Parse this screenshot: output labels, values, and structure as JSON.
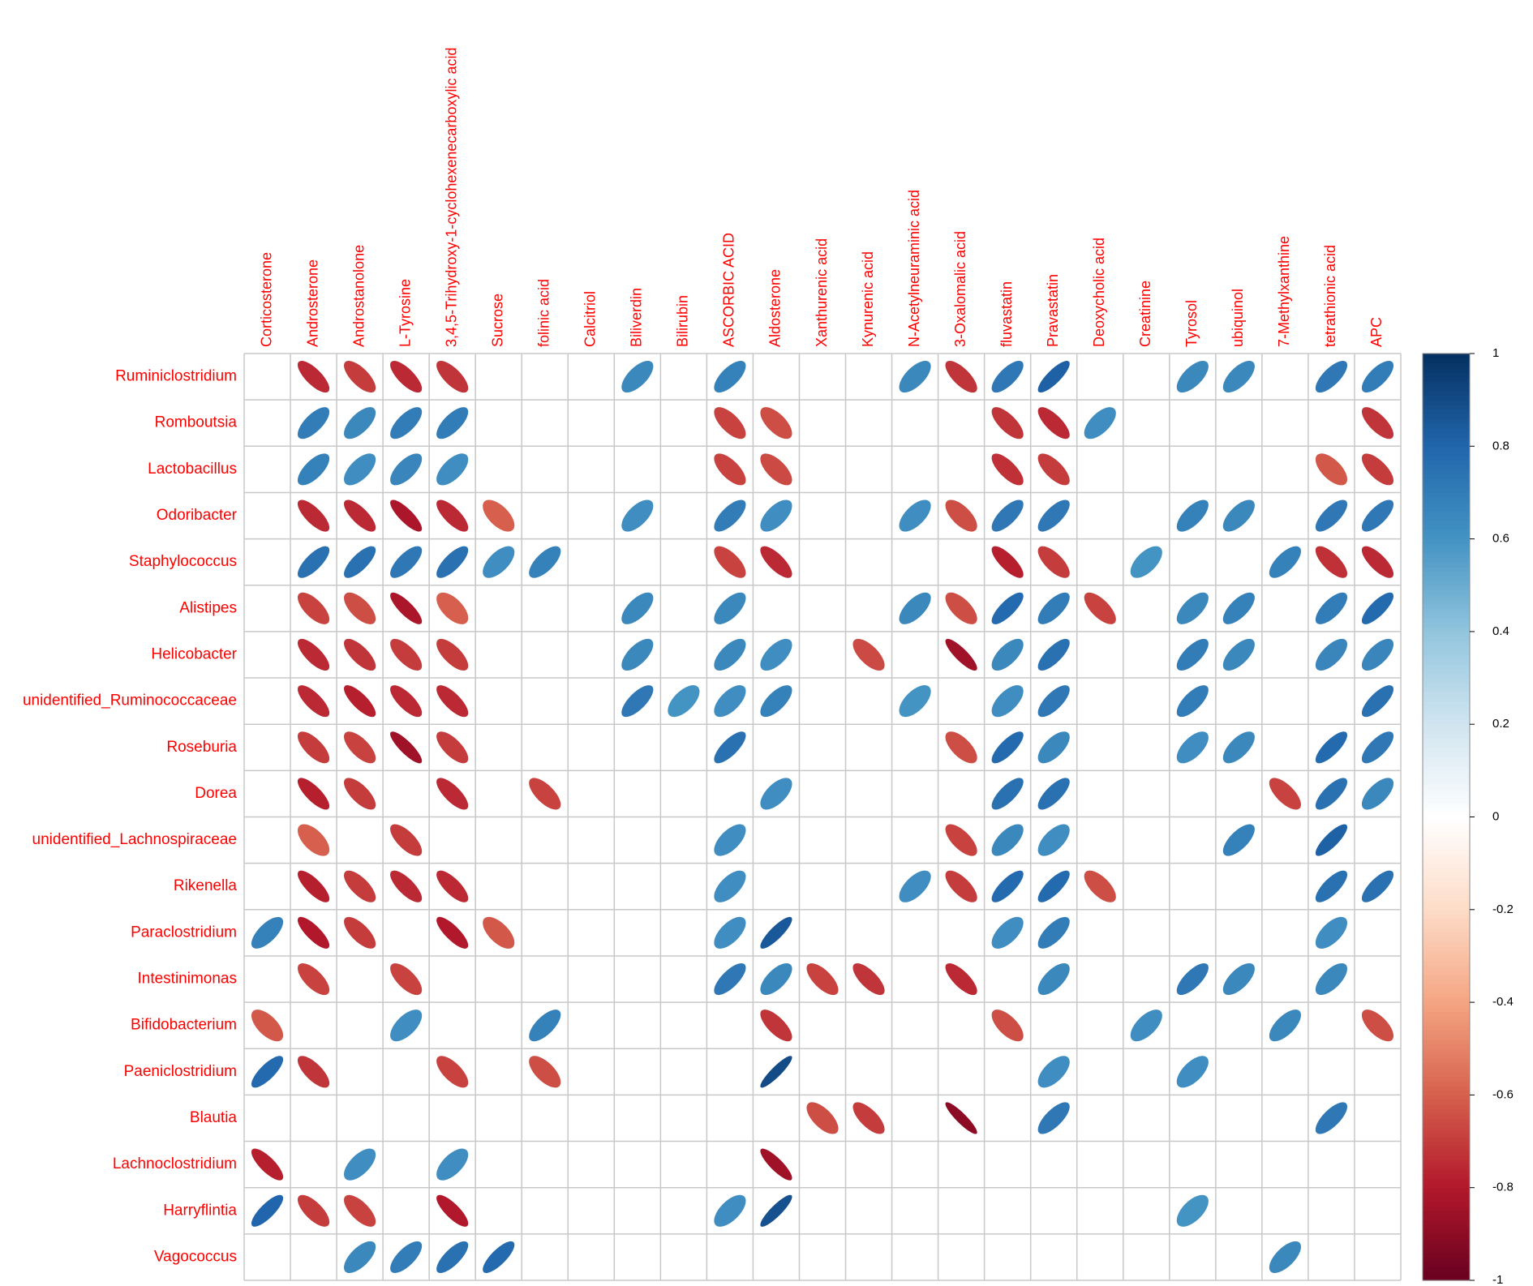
{
  "chart_data": {
    "type": "corrplot",
    "categories": [
      "Corticosterone",
      "Androsterone",
      "Androstanolone",
      "L-Tyrosine",
      "3,4,5-Trihydroxy-1-cyclohexenecarboxylic acid",
      "Sucrose",
      "folinic acid",
      "Calcitriol",
      "Biliverdin",
      "Bilirubin",
      "ASCORBIC ACID",
      "Aldosterone",
      "Xanthurenic acid",
      "Kynurenic acid",
      "N-Acetylneuraminic acid",
      "3-Oxalomalic acid",
      "fluvastatin",
      "Pravastatin",
      "Deoxycholic acid",
      "Creatinine",
      "Tyrosol",
      "ubiquinol",
      "7-Methylxanthine",
      "tetrathionic acid",
      "APC"
    ],
    "rows": [
      "Ruminiclostridium",
      "Romboutsia",
      "Lactobacillus",
      "Odoribacter",
      "Staphylococcus",
      "Alistipes",
      "Helicobacter",
      "unidentified_Ruminococcaceae",
      "Roseburia",
      "Dorea",
      "unidentified_Lachnospiraceae",
      "Rikenella",
      "Paraclostridium",
      "Intestinimonas",
      "Bifidobacterium",
      "Paeniclostridium",
      "Blautia",
      "Lachnoclostridium",
      "Harryflintia",
      "Vagococcus"
    ],
    "values": [
      [
        null,
        -0.75,
        -0.7,
        -0.75,
        -0.72,
        null,
        null,
        null,
        0.65,
        null,
        0.68,
        null,
        null,
        null,
        0.65,
        -0.72,
        0.72,
        0.82,
        null,
        null,
        0.65,
        0.65,
        null,
        0.72,
        0.7
      ],
      [
        null,
        0.7,
        0.65,
        0.7,
        0.7,
        null,
        null,
        null,
        null,
        null,
        -0.68,
        -0.65,
        null,
        null,
        null,
        null,
        -0.72,
        -0.75,
        0.62,
        null,
        null,
        null,
        null,
        null,
        -0.72
      ],
      [
        null,
        0.68,
        0.62,
        0.66,
        0.62,
        null,
        null,
        null,
        null,
        null,
        -0.68,
        -0.66,
        null,
        null,
        null,
        null,
        -0.73,
        -0.7,
        null,
        null,
        null,
        null,
        null,
        -0.62,
        -0.7
      ],
      [
        null,
        -0.75,
        -0.75,
        -0.82,
        -0.75,
        -0.6,
        null,
        null,
        0.62,
        null,
        0.7,
        0.62,
        null,
        null,
        0.62,
        -0.65,
        0.72,
        0.72,
        null,
        null,
        0.68,
        0.65,
        null,
        0.72,
        0.72
      ],
      [
        null,
        0.75,
        0.75,
        0.72,
        0.75,
        0.62,
        0.68,
        null,
        null,
        null,
        -0.68,
        -0.75,
        null,
        null,
        null,
        null,
        -0.78,
        -0.7,
        null,
        0.6,
        null,
        null,
        0.68,
        -0.73,
        -0.75
      ],
      [
        null,
        -0.68,
        -0.65,
        -0.82,
        -0.6,
        null,
        null,
        null,
        0.65,
        null,
        0.65,
        null,
        null,
        null,
        0.65,
        -0.65,
        0.78,
        0.7,
        -0.68,
        null,
        0.65,
        0.68,
        null,
        0.7,
        0.78
      ],
      [
        null,
        -0.75,
        -0.72,
        -0.7,
        -0.7,
        null,
        null,
        null,
        0.65,
        null,
        0.65,
        0.62,
        null,
        -0.66,
        null,
        -0.85,
        0.65,
        0.75,
        null,
        null,
        0.7,
        0.65,
        null,
        0.66,
        0.66
      ],
      [
        null,
        -0.75,
        -0.78,
        -0.75,
        -0.75,
        null,
        null,
        null,
        0.72,
        0.6,
        0.62,
        0.68,
        null,
        null,
        0.6,
        null,
        0.62,
        0.72,
        null,
        null,
        0.7,
        null,
        null,
        null,
        0.75
      ],
      [
        null,
        -0.7,
        -0.68,
        -0.85,
        -0.7,
        null,
        null,
        null,
        null,
        null,
        0.75,
        null,
        null,
        null,
        null,
        -0.65,
        0.78,
        0.65,
        null,
        null,
        0.62,
        0.65,
        null,
        0.78,
        0.72
      ],
      [
        null,
        -0.78,
        -0.7,
        null,
        -0.75,
        null,
        -0.68,
        null,
        null,
        null,
        null,
        0.62,
        null,
        null,
        null,
        null,
        0.75,
        0.75,
        null,
        null,
        null,
        null,
        -0.68,
        0.75,
        0.65
      ],
      [
        null,
        -0.6,
        null,
        -0.7,
        null,
        null,
        null,
        null,
        null,
        null,
        0.62,
        null,
        null,
        null,
        null,
        -0.68,
        0.65,
        0.62,
        null,
        null,
        null,
        0.68,
        null,
        0.82,
        null
      ],
      [
        null,
        -0.78,
        -0.7,
        -0.75,
        -0.75,
        null,
        null,
        null,
        null,
        null,
        0.62,
        null,
        null,
        null,
        0.62,
        -0.7,
        0.78,
        0.78,
        -0.65,
        null,
        null,
        null,
        null,
        0.75,
        0.75
      ],
      [
        0.68,
        -0.8,
        -0.7,
        null,
        -0.8,
        -0.62,
        null,
        null,
        null,
        null,
        0.62,
        0.85,
        null,
        null,
        null,
        null,
        0.62,
        0.7,
        null,
        null,
        null,
        null,
        null,
        0.62,
        null
      ],
      [
        null,
        -0.68,
        null,
        -0.68,
        null,
        null,
        null,
        null,
        null,
        null,
        0.72,
        0.65,
        -0.68,
        -0.72,
        null,
        -0.75,
        null,
        0.65,
        null,
        null,
        0.72,
        0.65,
        null,
        0.65,
        null
      ],
      [
        -0.62,
        null,
        null,
        0.62,
        null,
        null,
        0.68,
        null,
        null,
        null,
        null,
        -0.72,
        null,
        null,
        null,
        null,
        -0.65,
        null,
        null,
        0.62,
        null,
        null,
        0.65,
        null,
        -0.65
      ],
      [
        0.78,
        -0.72,
        null,
        null,
        -0.68,
        null,
        -0.65,
        null,
        null,
        null,
        null,
        0.9,
        null,
        null,
        null,
        null,
        null,
        0.62,
        null,
        null,
        0.62,
        null,
        null,
        null,
        null
      ],
      [
        null,
        null,
        null,
        null,
        null,
        null,
        null,
        null,
        null,
        null,
        null,
        null,
        -0.65,
        -0.7,
        null,
        -0.9,
        null,
        0.72,
        null,
        null,
        null,
        null,
        null,
        0.72,
        null
      ],
      [
        -0.78,
        null,
        0.62,
        null,
        0.62,
        null,
        null,
        null,
        null,
        null,
        null,
        -0.85,
        null,
        null,
        null,
        null,
        null,
        null,
        null,
        null,
        null,
        null,
        null,
        null,
        null
      ],
      [
        0.8,
        -0.7,
        -0.68,
        null,
        -0.8,
        null,
        null,
        null,
        null,
        null,
        0.62,
        0.88,
        null,
        null,
        null,
        null,
        null,
        null,
        null,
        null,
        0.6,
        null,
        null,
        null,
        null
      ],
      [
        null,
        null,
        0.65,
        0.7,
        0.75,
        0.78,
        null,
        null,
        null,
        null,
        null,
        null,
        null,
        null,
        null,
        null,
        null,
        null,
        null,
        null,
        null,
        null,
        0.65,
        null,
        null
      ]
    ],
    "clim": [
      -1,
      1
    ],
    "cticks": [
      1,
      0.8,
      0.6,
      0.4,
      0.2,
      0,
      -0.2,
      -0.4,
      -0.6,
      -0.8,
      -1
    ],
    "colorscale": [
      "#67001F",
      "#B2182B",
      "#D6604D",
      "#F4A582",
      "#FDDBC7",
      "#FFFFFF",
      "#D1E5F0",
      "#92C5DE",
      "#4393C3",
      "#2166AC",
      "#053061"
    ],
    "label_color": "#FF0000"
  }
}
